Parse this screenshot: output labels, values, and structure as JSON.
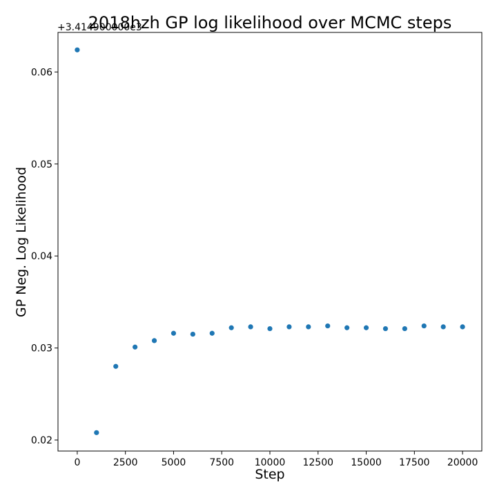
{
  "chart_data": {
    "type": "scatter",
    "title": "2018hzh  GP log likelihood over MCMC steps",
    "xlabel": "Step",
    "ylabel": "GP Neg. Log Likelihood",
    "offset_text": "+3.414900000e3",
    "xlim": [
      -1000,
      21000
    ],
    "ylim": [
      0.0188,
      0.0643
    ],
    "xticks": [
      0,
      2500,
      5000,
      7500,
      10000,
      12500,
      15000,
      17500,
      20000
    ],
    "xtick_labels": [
      "0",
      "2500",
      "5000",
      "7500",
      "10000",
      "12500",
      "15000",
      "17500",
      "20000"
    ],
    "yticks": [
      0.02,
      0.03,
      0.04,
      0.05,
      0.06
    ],
    "ytick_labels": [
      "0.02",
      "0.03",
      "0.04",
      "0.05",
      "0.06"
    ],
    "grid": false,
    "marker_color": "#1f77b4",
    "series": [
      {
        "x": [
          0,
          1000,
          2000,
          3000,
          4000,
          5000,
          6000,
          7000,
          8000,
          9000,
          10000,
          11000,
          12000,
          13000,
          14000,
          15000,
          16000,
          17000,
          18000,
          19000,
          20000
        ],
        "y": [
          0.0624,
          0.0208,
          0.028,
          0.0301,
          0.0308,
          0.0316,
          0.0315,
          0.0316,
          0.0322,
          0.0323,
          0.0321,
          0.0323,
          0.0323,
          0.0324,
          0.0322,
          0.0322,
          0.0321,
          0.0321,
          0.0324,
          0.0323,
          0.0323
        ]
      }
    ]
  }
}
